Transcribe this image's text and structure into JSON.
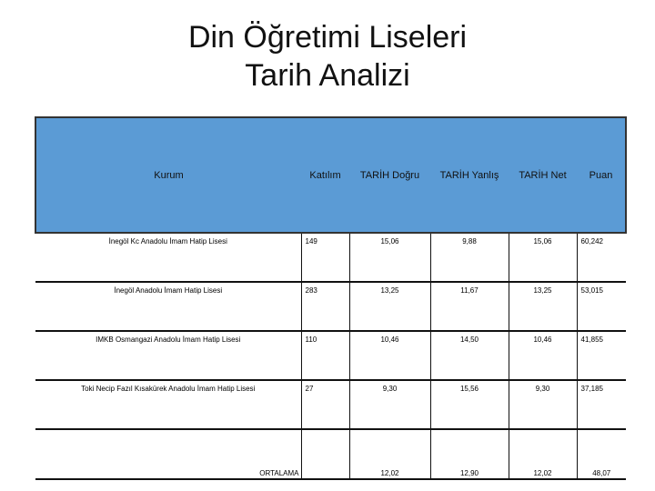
{
  "title_line1": "Din Öğretimi Liseleri",
  "title_line2": "Tarih Analizi",
  "headers": [
    "Kurum",
    "Katılım",
    "TARİH Doğru",
    "TARİH Yanlış",
    "TARİH Net",
    "Puan"
  ],
  "header_color": "#5b9bd5",
  "rows": [
    {
      "kurum": "İnegöl Kc Anadolu İmam Hatip Lisesi",
      "katilim": "149",
      "dogru": "15,06",
      "yanlis": "9,88",
      "net": "15,06",
      "puan": "60,242"
    },
    {
      "kurum": "İnegöl Anadolu İmam Hatip Lisesi",
      "katilim": "283",
      "dogru": "13,25",
      "yanlis": "11,67",
      "net": "13,25",
      "puan": "53,015"
    },
    {
      "kurum": "IMKB Osmangazi Anadolu İmam Hatip Lisesi",
      "katilim": "110",
      "dogru": "10,46",
      "yanlis": "14,50",
      "net": "10,46",
      "puan": "41,855"
    },
    {
      "kurum": "Toki Necip Fazıl Kısakürek Anadolu İmam Hatip Lisesi",
      "katilim": "27",
      "dogru": "9,30",
      "yanlis": "15,56",
      "net": "9,30",
      "puan": "37,185"
    }
  ],
  "average": {
    "label": "ORTALAMA",
    "dogru": "12,02",
    "yanlis": "12,90",
    "net": "12,02",
    "puan": "48,07"
  }
}
